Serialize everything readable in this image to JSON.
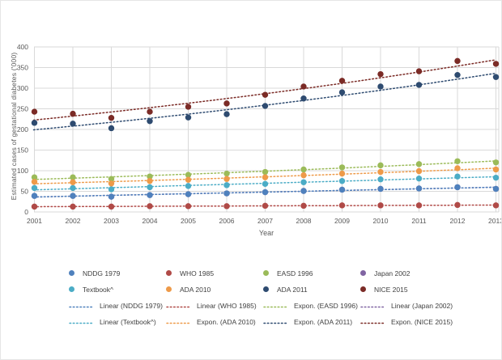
{
  "chart_data": {
    "type": "scatter",
    "title": "",
    "xlabel": "Year",
    "ylabel": "Estimated cases of gestational diabetes ('000)",
    "ylim": [
      0,
      400
    ],
    "ytick_step": 50,
    "grid": true,
    "legend_position": "bottom",
    "x": [
      2001,
      2002,
      2003,
      2004,
      2005,
      2006,
      2007,
      2008,
      2009,
      2010,
      2011,
      2012,
      2013
    ],
    "series": [
      {
        "name": "Japan 2002",
        "color": "#8064A2",
        "trend": "linear",
        "trend_label": "Linear (Japan 2002)",
        "values": [
          39,
          39,
          37,
          41,
          43,
          45,
          48,
          51,
          54,
          56,
          57,
          60,
          56
        ]
      },
      {
        "name": "NDDG 1979",
        "color": "#4F81BD",
        "trend": "linear",
        "trend_label": "Linear (NDDG 1979)",
        "values": [
          39,
          39,
          37,
          41,
          43,
          45,
          48,
          51,
          54,
          56,
          57,
          60,
          56
        ]
      },
      {
        "name": "WHO 1985",
        "color": "#B04A47",
        "trend": "linear",
        "trend_label": "Linear (WHO 1985)",
        "values": [
          13,
          13,
          13,
          14,
          14,
          14,
          15,
          15,
          16,
          16,
          16,
          17,
          16
        ]
      },
      {
        "name": "EASD 1996",
        "color": "#9BBB59",
        "trend": "expon",
        "trend_label": "Expon. (EASD 1996)",
        "values": [
          84,
          84,
          80,
          86,
          90,
          93,
          97,
          103,
          108,
          113,
          116,
          123,
          120
        ]
      },
      {
        "name": "Textbook^",
        "color": "#4BACC6",
        "trend": "linear",
        "trend_label": "Linear (Textbook^)",
        "values": [
          58,
          58,
          55,
          60,
          63,
          65,
          68,
          72,
          75,
          79,
          81,
          86,
          83
        ]
      },
      {
        "name": "ADA 2010",
        "color": "#EE9A49",
        "trend": "expon",
        "trend_label": "Expon. (ADA 2010)",
        "values": [
          73,
          72,
          69,
          75,
          78,
          80,
          84,
          89,
          93,
          97,
          99,
          106,
          103
        ]
      },
      {
        "name": "ADA 2011",
        "color": "#2E4B70",
        "trend": "expon",
        "trend_label": "Expon. (ADA 2011)",
        "values": [
          216,
          214,
          203,
          220,
          229,
          237,
          257,
          275,
          290,
          304,
          308,
          332,
          327
        ]
      },
      {
        "name": "NICE 2015",
        "color": "#7B2B26",
        "trend": "expon",
        "trend_label": "Expon. (NICE 2015)",
        "values": [
          243,
          238,
          228,
          243,
          255,
          263,
          284,
          304,
          318,
          334,
          341,
          366,
          359
        ]
      }
    ]
  },
  "legend": {
    "markers": [
      {
        "label": "NDDG 1979",
        "color": "#4F81BD"
      },
      {
        "label": "WHO 1985",
        "color": "#B04A47"
      },
      {
        "label": "EASD 1996",
        "color": "#9BBB59"
      },
      {
        "label": "Japan 2002",
        "color": "#8064A2"
      },
      {
        "label": "Textbook^",
        "color": "#4BACC6"
      },
      {
        "label": "ADA 2010",
        "color": "#EE9A49"
      },
      {
        "label": "ADA 2011",
        "color": "#2E4B70"
      },
      {
        "label": "NICE 2015",
        "color": "#7B2B26"
      }
    ],
    "lines": [
      {
        "label": "Linear (NDDG 1979)",
        "color": "#4F81BD"
      },
      {
        "label": "Linear (WHO 1985)",
        "color": "#B04A47"
      },
      {
        "label": "Expon. (EASD 1996)",
        "color": "#9BBB59"
      },
      {
        "label": "Linear (Japan 2002)",
        "color": "#8064A2"
      },
      {
        "label": "Linear (Textbook^)",
        "color": "#4BACC6"
      },
      {
        "label": "Expon. (ADA 2010)",
        "color": "#EE9A49"
      },
      {
        "label": "Expon. (ADA 2011)",
        "color": "#2E4B70"
      },
      {
        "label": "Expon. (NICE 2015)",
        "color": "#7B2B26"
      }
    ]
  },
  "style": {
    "gridline_color": "#d9d9d9",
    "tick_label_color": "#595959",
    "legend_text_color": "#3f3f3f"
  }
}
